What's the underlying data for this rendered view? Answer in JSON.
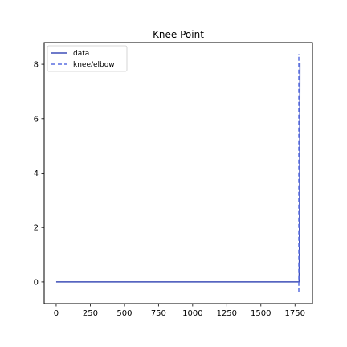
{
  "chart_data": {
    "type": "line",
    "title": "Knee Point",
    "xlabel": "",
    "ylabel": "",
    "xlim": [
      -88,
      1878
    ],
    "ylim": [
      -0.8,
      8.8
    ],
    "x_ticks": [
      0,
      250,
      500,
      750,
      1000,
      1250,
      1500,
      1750
    ],
    "y_ticks": [
      0,
      2,
      4,
      6,
      8
    ],
    "grid": false,
    "legend_position": "top-left",
    "series": [
      {
        "name": "data",
        "style": "solid",
        "color": "#3f4fb8",
        "x": [
          0,
          1780,
          1782,
          1784,
          1786
        ],
        "y": [
          0,
          0,
          0.9,
          4.0,
          8.05
        ]
      }
    ],
    "vlines": [
      {
        "name": "knee/elbow",
        "style": "dashed",
        "color": "#5a6fe0",
        "x": 1778,
        "ymin": -0.38,
        "ymax": 8.38
      }
    ]
  }
}
